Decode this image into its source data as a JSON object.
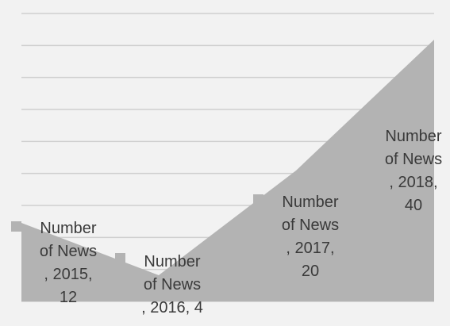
{
  "chart_data": {
    "type": "area",
    "categories": [
      "2015",
      "2016",
      "2017",
      "2018"
    ],
    "series": [
      {
        "name": "Number of News",
        "values": [
          12,
          4,
          20,
          40
        ]
      }
    ],
    "ylim": [
      0,
      44
    ],
    "grid": true,
    "legend": "none",
    "colors": {
      "area": "#b3b3b3",
      "grid": "#cfcfcf",
      "background": "#f2f2f2",
      "label": "#3a3a3a",
      "marker": "#b3b3b3"
    },
    "data_labels": [
      [
        "Number",
        "of News",
        ", 2015,",
        "12"
      ],
      [
        "Number",
        "of News",
        ", 2016, 4"
      ],
      [
        "Number",
        "of News",
        ", 2017,",
        "20"
      ],
      [
        "Number",
        "of News",
        ", 2018,",
        "40"
      ]
    ]
  }
}
